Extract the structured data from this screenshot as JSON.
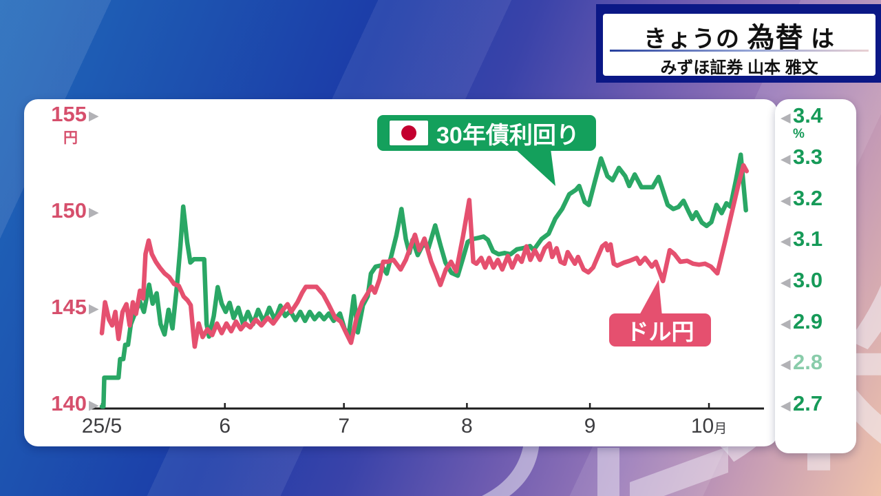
{
  "header": {
    "title_pre": "きょうの ",
    "title_em": "為替",
    "title_post": " は",
    "subtitle": "みずほ証券 山本 雅文"
  },
  "watermark": {
    "glyph": "米"
  },
  "colors": {
    "bond_green": "#2aa765",
    "bond_label_bg": "#14a05c",
    "usdjpy_pink": "#e5506f",
    "left_axis_text": "#d64f6c",
    "right_axis_text": "#169a58",
    "axis_line": "#1e1e1e",
    "arrow_gray": "#b2b2b6",
    "flag_red": "#c3002f"
  },
  "chart_data": {
    "type": "line",
    "title": "",
    "x_axis": {
      "labels": [
        "25/5",
        "6",
        "7",
        "8",
        "9",
        "10月"
      ],
      "month_start_days": [
        0,
        31,
        61,
        92,
        123,
        153
      ],
      "total_days": 163
    },
    "y_left": {
      "unit": "円",
      "ticks": [
        "155",
        "150",
        "145",
        "140"
      ],
      "tick_values": [
        155,
        150,
        145,
        140
      ],
      "min": 140,
      "max": 155
    },
    "y_right": {
      "unit": "%",
      "ticks": [
        "3.4",
        "3.3",
        "3.2",
        "3.1",
        "3.0",
        "2.9",
        "2.8",
        "2.7"
      ],
      "tick_values": [
        3.4,
        3.3,
        3.2,
        3.1,
        3.0,
        2.9,
        2.8,
        2.7
      ],
      "min": 2.7,
      "max": 3.4,
      "muted_tick": "2.8"
    },
    "series": [
      {
        "name": "30年債利回り",
        "axis": "right",
        "color": "#2aa765",
        "points": [
          [
            0,
            2.7
          ],
          [
            0.4,
            2.7
          ],
          [
            0.6,
            2.77
          ],
          [
            4.2,
            2.77
          ],
          [
            4.6,
            2.815
          ],
          [
            5.4,
            2.815
          ],
          [
            5.9,
            2.85
          ],
          [
            6.6,
            2.85
          ],
          [
            7.3,
            2.9
          ],
          [
            8.5,
            2.93
          ],
          [
            9.6,
            2.955
          ],
          [
            10.6,
            2.93
          ],
          [
            11.9,
            2.996
          ],
          [
            12.8,
            2.95
          ],
          [
            13.8,
            2.975
          ],
          [
            14.8,
            2.9
          ],
          [
            15.8,
            2.875
          ],
          [
            16.8,
            2.935
          ],
          [
            17.8,
            2.89
          ],
          [
            19.0,
            3.0
          ],
          [
            19.8,
            3.09
          ],
          [
            20.5,
            3.186
          ],
          [
            21.5,
            3.1
          ],
          [
            22.3,
            3.05
          ],
          [
            23.2,
            3.058
          ],
          [
            25.8,
            3.058
          ],
          [
            26.4,
            2.9
          ],
          [
            27.0,
            2.87
          ],
          [
            28.2,
            2.92
          ],
          [
            29.2,
            2.99
          ],
          [
            30.2,
            2.95
          ],
          [
            31.2,
            2.93
          ],
          [
            32.2,
            2.952
          ],
          [
            33.2,
            2.915
          ],
          [
            34.4,
            2.94
          ],
          [
            35.6,
            2.9
          ],
          [
            36.8,
            2.93
          ],
          [
            38.1,
            2.9
          ],
          [
            39.4,
            2.935
          ],
          [
            40.8,
            2.905
          ],
          [
            42.2,
            2.94
          ],
          [
            43.6,
            2.91
          ],
          [
            45.0,
            2.945
          ],
          [
            46.2,
            2.92
          ],
          [
            47.5,
            2.932
          ],
          [
            48.8,
            2.91
          ],
          [
            50.0,
            2.93
          ],
          [
            51.2,
            2.908
          ],
          [
            52.4,
            2.93
          ],
          [
            53.6,
            2.912
          ],
          [
            54.8,
            2.926
          ],
          [
            56.0,
            2.912
          ],
          [
            57.2,
            2.926
          ],
          [
            58.4,
            2.908
          ],
          [
            60.0,
            2.926
          ],
          [
            61.2,
            2.888
          ],
          [
            62.2,
            2.873
          ],
          [
            63.5,
            2.968
          ],
          [
            64.5,
            2.88
          ],
          [
            65.8,
            2.946
          ],
          [
            67.0,
            2.968
          ],
          [
            67.8,
            3.023
          ],
          [
            69.0,
            3.04
          ],
          [
            70.5,
            3.043
          ],
          [
            71.8,
            3.023
          ],
          [
            73.0,
            3.068
          ],
          [
            74.2,
            3.115
          ],
          [
            75.5,
            3.18
          ],
          [
            76.6,
            3.107
          ],
          [
            77.5,
            3.073
          ],
          [
            78.3,
            3.105
          ],
          [
            79.6,
            3.068
          ],
          [
            81.0,
            3.095
          ],
          [
            82.3,
            3.085
          ],
          [
            84.0,
            3.14
          ],
          [
            85.4,
            3.09
          ],
          [
            86.6,
            3.05
          ],
          [
            88.1,
            3.025
          ],
          [
            89.7,
            3.018
          ],
          [
            91.0,
            3.06
          ],
          [
            92.2,
            3.1
          ],
          [
            93.5,
            3.107
          ],
          [
            95.0,
            3.11
          ],
          [
            96.2,
            3.113
          ],
          [
            97.3,
            3.105
          ],
          [
            98.6,
            3.077
          ],
          [
            100.0,
            3.07
          ],
          [
            101.5,
            3.073
          ],
          [
            103.0,
            3.07
          ],
          [
            104.6,
            3.082
          ],
          [
            106.2,
            3.085
          ],
          [
            107.9,
            3.09
          ],
          [
            108.8,
            3.08
          ],
          [
            110.8,
            3.107
          ],
          [
            112.6,
            3.12
          ],
          [
            114.3,
            3.157
          ],
          [
            116.0,
            3.18
          ],
          [
            117.8,
            3.216
          ],
          [
            119.5,
            3.227
          ],
          [
            120.3,
            3.236
          ],
          [
            121.7,
            3.197
          ],
          [
            122.7,
            3.19
          ],
          [
            124.2,
            3.245
          ],
          [
            125.8,
            3.303
          ],
          [
            127.4,
            3.26
          ],
          [
            128.7,
            3.25
          ],
          [
            130.3,
            3.28
          ],
          [
            131.9,
            3.26
          ],
          [
            132.9,
            3.236
          ],
          [
            134.3,
            3.264
          ],
          [
            136.0,
            3.233
          ],
          [
            138.8,
            3.233
          ],
          [
            140.3,
            3.258
          ],
          [
            142.6,
            3.19
          ],
          [
            144.0,
            3.18
          ],
          [
            145.3,
            3.185
          ],
          [
            146.6,
            3.2
          ],
          [
            147.8,
            3.175
          ],
          [
            148.8,
            3.156
          ],
          [
            149.8,
            3.172
          ],
          [
            151.2,
            3.147
          ],
          [
            152.4,
            3.139
          ],
          [
            153.6,
            3.148
          ],
          [
            154.9,
            3.19
          ],
          [
            156.2,
            3.17
          ],
          [
            157.4,
            3.194
          ],
          [
            158.4,
            3.186
          ],
          [
            159.8,
            3.25
          ],
          [
            161.0,
            3.312
          ],
          [
            162.3,
            3.177
          ]
        ]
      },
      {
        "name": "ドル円",
        "axis": "left",
        "color": "#e5506f",
        "points": [
          [
            0,
            143.8
          ],
          [
            0.8,
            145.4
          ],
          [
            1.8,
            144.5
          ],
          [
            2.6,
            144.2
          ],
          [
            3.4,
            144.9
          ],
          [
            4.2,
            143.5
          ],
          [
            5.2,
            144.9
          ],
          [
            6.2,
            145.3
          ],
          [
            7.0,
            144.2
          ],
          [
            7.8,
            145.4
          ],
          [
            8.6,
            144.8
          ],
          [
            9.6,
            146.0
          ],
          [
            10.4,
            145.6
          ],
          [
            11.0,
            147.9
          ],
          [
            11.8,
            148.6
          ],
          [
            12.6,
            147.9
          ],
          [
            13.6,
            147.5
          ],
          [
            14.6,
            147.2
          ],
          [
            15.8,
            146.9
          ],
          [
            17.0,
            146.7
          ],
          [
            18.2,
            146.35
          ],
          [
            19.4,
            146.25
          ],
          [
            20.6,
            145.7
          ],
          [
            21.6,
            145.5
          ],
          [
            22.4,
            145.25
          ],
          [
            23.0,
            143.9
          ],
          [
            23.4,
            143.1
          ],
          [
            24.4,
            144.3
          ],
          [
            25.4,
            143.6
          ],
          [
            26.6,
            144.0
          ],
          [
            27.8,
            143.7
          ],
          [
            29.0,
            144.3
          ],
          [
            30.2,
            143.8
          ],
          [
            31.4,
            144.3
          ],
          [
            32.6,
            143.9
          ],
          [
            33.8,
            144.4
          ],
          [
            35.0,
            144.0
          ],
          [
            36.2,
            144.3
          ],
          [
            37.4,
            144.1
          ],
          [
            38.8,
            144.5
          ],
          [
            40.2,
            144.2
          ],
          [
            41.8,
            144.6
          ],
          [
            43.2,
            144.3
          ],
          [
            44.6,
            144.7
          ],
          [
            45.6,
            145.0
          ],
          [
            46.8,
            145.3
          ],
          [
            47.7,
            144.9
          ],
          [
            49.3,
            145.4
          ],
          [
            50.5,
            145.9
          ],
          [
            51.4,
            146.2
          ],
          [
            54.1,
            146.2
          ],
          [
            55.8,
            145.8
          ],
          [
            57.1,
            145.3
          ],
          [
            58.8,
            144.6
          ],
          [
            60.2,
            144.4
          ],
          [
            61.6,
            143.8
          ],
          [
            62.8,
            143.3
          ],
          [
            64.2,
            144.6
          ],
          [
            65.6,
            145.4
          ],
          [
            66.8,
            145.8
          ],
          [
            68.0,
            146.2
          ],
          [
            68.8,
            145.9
          ],
          [
            70.0,
            146.6
          ],
          [
            70.9,
            147.5
          ],
          [
            72.0,
            147.5
          ],
          [
            73.5,
            147.6
          ],
          [
            75.3,
            147.1
          ],
          [
            76.6,
            147.6
          ],
          [
            78.9,
            148.9
          ],
          [
            80.0,
            148.1
          ],
          [
            81.3,
            148.7
          ],
          [
            83.0,
            147.5
          ],
          [
            84.2,
            146.9
          ],
          [
            85.3,
            146.3
          ],
          [
            86.7,
            147.1
          ],
          [
            88.0,
            147.5
          ],
          [
            89.3,
            147.0
          ],
          [
            91.0,
            148.8
          ],
          [
            92.6,
            150.7
          ],
          [
            93.6,
            147.5
          ],
          [
            94.4,
            147.4
          ],
          [
            95.6,
            147.7
          ],
          [
            96.6,
            147.2
          ],
          [
            97.6,
            147.7
          ],
          [
            98.7,
            147.2
          ],
          [
            99.8,
            147.6
          ],
          [
            100.9,
            147.1
          ],
          [
            102.3,
            147.8
          ],
          [
            103.4,
            147.2
          ],
          [
            104.7,
            147.8
          ],
          [
            105.8,
            147.5
          ],
          [
            107.0,
            148.3
          ],
          [
            108.0,
            147.6
          ],
          [
            109.1,
            148.1
          ],
          [
            110.4,
            147.6
          ],
          [
            111.6,
            148.2
          ],
          [
            112.8,
            148.45
          ],
          [
            113.5,
            147.75
          ],
          [
            114.6,
            148.2
          ],
          [
            115.6,
            147.5
          ],
          [
            116.6,
            147.4
          ],
          [
            117.4,
            148.0
          ],
          [
            118.3,
            147.7
          ],
          [
            119.2,
            147.4
          ],
          [
            120.0,
            147.75
          ],
          [
            121.4,
            147.1
          ],
          [
            122.6,
            146.95
          ],
          [
            123.8,
            147.2
          ],
          [
            126.1,
            148.3
          ],
          [
            127.0,
            148.45
          ],
          [
            127.5,
            148.1
          ],
          [
            128.2,
            148.4
          ],
          [
            129.0,
            147.4
          ],
          [
            129.9,
            147.3
          ],
          [
            131.5,
            147.45
          ],
          [
            133.0,
            147.55
          ],
          [
            134.8,
            147.7
          ],
          [
            135.6,
            147.4
          ],
          [
            136.9,
            147.7
          ],
          [
            138.6,
            147.25
          ],
          [
            139.6,
            147.5
          ],
          [
            141.4,
            146.5
          ],
          [
            143.1,
            148.1
          ],
          [
            144.3,
            147.9
          ],
          [
            145.8,
            147.5
          ],
          [
            147.5,
            147.55
          ],
          [
            149.0,
            147.4
          ],
          [
            150.5,
            147.35
          ],
          [
            152.0,
            147.4
          ],
          [
            153.5,
            147.25
          ],
          [
            155.1,
            146.9
          ],
          [
            157.0,
            148.5
          ],
          [
            158.7,
            150.0
          ],
          [
            160.3,
            151.4
          ],
          [
            161.7,
            152.5
          ],
          [
            162.5,
            152.2
          ]
        ]
      }
    ],
    "legend": {
      "bond_label": "30年債利回り",
      "bond_flag": "japan-flag",
      "usdjpy_label": "ドル円"
    }
  }
}
